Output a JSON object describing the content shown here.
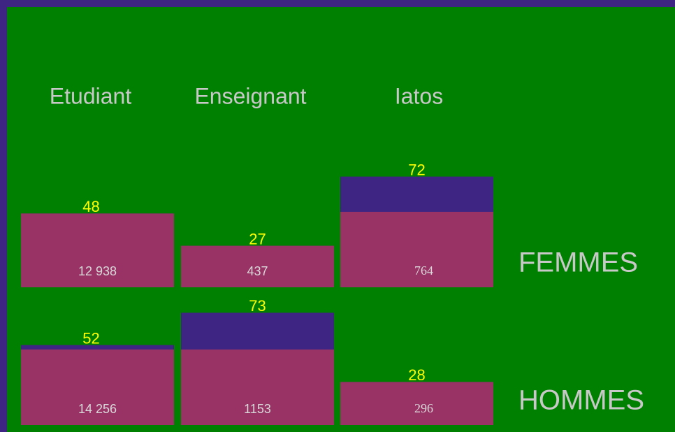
{
  "chart_data": {
    "type": "bar",
    "categories": [
      "Etudiant",
      "Enseignant",
      "Iatos"
    ],
    "series": [
      {
        "name": "FEMMES",
        "values": [
          48,
          27,
          72
        ],
        "counts": [
          "12 938",
          "437",
          "764"
        ]
      },
      {
        "name": "HOMMES",
        "values": [
          52,
          73,
          28
        ],
        "counts": [
          "14 256",
          "1153",
          "296"
        ]
      }
    ],
    "color": "#993366",
    "overflow_color": "#3f2583",
    "label_color": "#ffff00"
  }
}
